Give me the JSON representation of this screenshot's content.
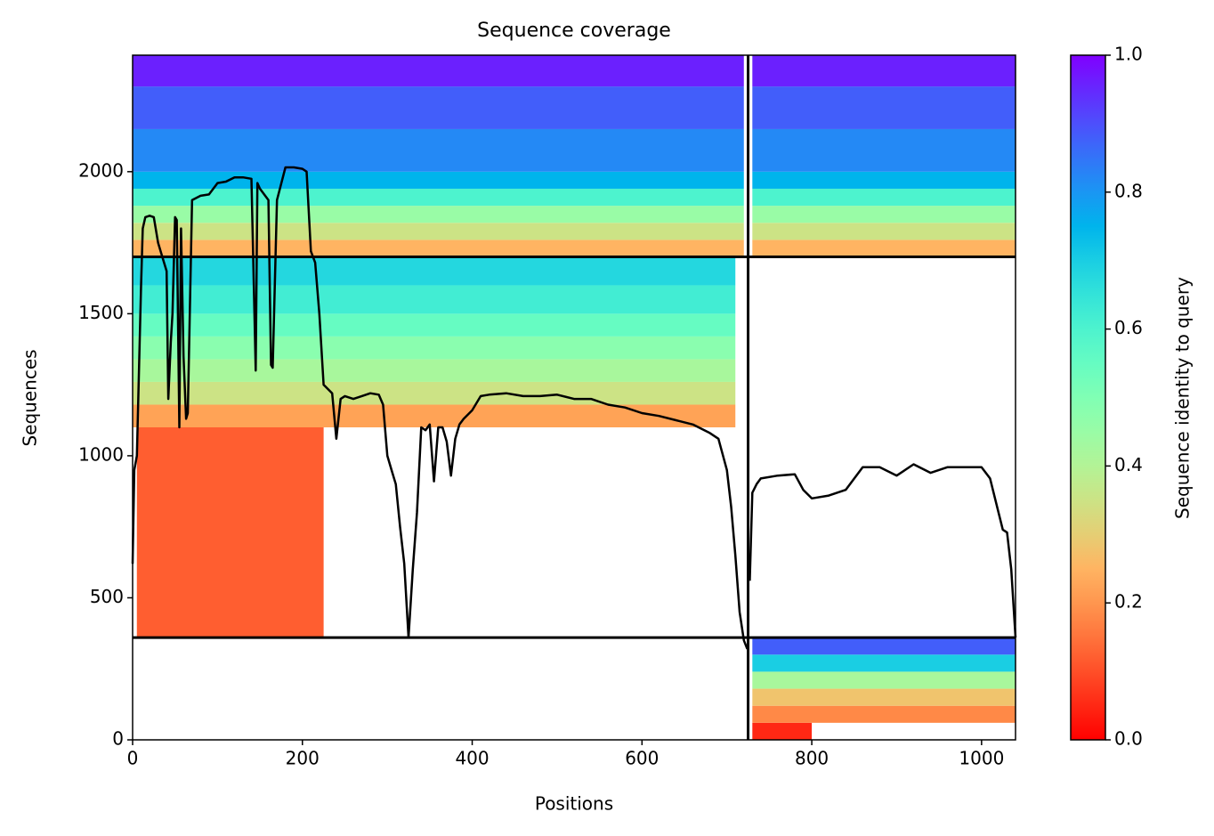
{
  "chart_data": {
    "type": "heatmap",
    "title": "Sequence coverage",
    "xlabel": "Positions",
    "ylabel": "Sequences",
    "xlim": [
      0,
      1040
    ],
    "ylim": [
      0,
      2410
    ],
    "xticks": [
      0,
      200,
      400,
      600,
      800,
      1000
    ],
    "yticks": [
      0,
      500,
      1000,
      1500,
      2000
    ],
    "colormap": "rainbow_r",
    "colorbar": {
      "label": "Sequence identity to query",
      "lim": [
        0,
        1
      ],
      "ticks": [
        {
          "value": 0,
          "label": "0.0"
        },
        0.2,
        0.4,
        0.6,
        0.8,
        {
          "value": 1,
          "label": "1.0"
        }
      ]
    },
    "bands": [
      {
        "x": [
          0,
          720
        ],
        "y": [
          1700,
          1760
        ],
        "identity": 0.25
      },
      {
        "x": [
          0,
          720
        ],
        "y": [
          1760,
          1820
        ],
        "identity": 0.35
      },
      {
        "x": [
          0,
          720
        ],
        "y": [
          1820,
          1880
        ],
        "identity": 0.45
      },
      {
        "x": [
          0,
          720
        ],
        "y": [
          1880,
          1940
        ],
        "identity": 0.6
      },
      {
        "x": [
          0,
          720
        ],
        "y": [
          1940,
          2000
        ],
        "identity": 0.75
      },
      {
        "x": [
          0,
          720
        ],
        "y": [
          2000,
          2150
        ],
        "identity": 0.82
      },
      {
        "x": [
          0,
          720
        ],
        "y": [
          2150,
          2300
        ],
        "identity": 0.88
      },
      {
        "x": [
          0,
          720
        ],
        "y": [
          2300,
          2410
        ],
        "identity": 0.96
      },
      {
        "x": [
          730,
          1040
        ],
        "y": [
          1700,
          1760
        ],
        "identity": 0.25
      },
      {
        "x": [
          730,
          1040
        ],
        "y": [
          1760,
          1820
        ],
        "identity": 0.35
      },
      {
        "x": [
          730,
          1040
        ],
        "y": [
          1820,
          1880
        ],
        "identity": 0.45
      },
      {
        "x": [
          730,
          1040
        ],
        "y": [
          1880,
          1940
        ],
        "identity": 0.6
      },
      {
        "x": [
          730,
          1040
        ],
        "y": [
          1940,
          2000
        ],
        "identity": 0.75
      },
      {
        "x": [
          730,
          1040
        ],
        "y": [
          2000,
          2150
        ],
        "identity": 0.82
      },
      {
        "x": [
          730,
          1040
        ],
        "y": [
          2150,
          2300
        ],
        "identity": 0.88
      },
      {
        "x": [
          730,
          1040
        ],
        "y": [
          2300,
          2410
        ],
        "identity": 0.96
      },
      {
        "x": [
          0,
          710
        ],
        "y": [
          1100,
          1180
        ],
        "identity": 0.22
      },
      {
        "x": [
          0,
          710
        ],
        "y": [
          1180,
          1260
        ],
        "identity": 0.35
      },
      {
        "x": [
          0,
          710
        ],
        "y": [
          1260,
          1340
        ],
        "identity": 0.42
      },
      {
        "x": [
          0,
          710
        ],
        "y": [
          1340,
          1420
        ],
        "identity": 0.48
      },
      {
        "x": [
          0,
          710
        ],
        "y": [
          1420,
          1500
        ],
        "identity": 0.55
      },
      {
        "x": [
          0,
          710
        ],
        "y": [
          1500,
          1600
        ],
        "identity": 0.62
      },
      {
        "x": [
          0,
          710
        ],
        "y": [
          1600,
          1700
        ],
        "identity": 0.68
      },
      {
        "x": [
          5,
          225
        ],
        "y": [
          360,
          1100
        ],
        "identity": 0.12
      },
      {
        "x": [
          730,
          800
        ],
        "y": [
          0,
          60
        ],
        "identity": 0.05
      },
      {
        "x": [
          730,
          1040
        ],
        "y": [
          60,
          120
        ],
        "identity": 0.18
      },
      {
        "x": [
          730,
          1040
        ],
        "y": [
          120,
          180
        ],
        "identity": 0.28
      },
      {
        "x": [
          730,
          1040
        ],
        "y": [
          180,
          240
        ],
        "identity": 0.42
      },
      {
        "x": [
          730,
          1040
        ],
        "y": [
          240,
          300
        ],
        "identity": 0.7
      },
      {
        "x": [
          730,
          1040
        ],
        "y": [
          300,
          360
        ],
        "identity": 0.88
      }
    ],
    "dividers": {
      "x": [
        725
      ],
      "y": [
        360,
        1700
      ]
    },
    "line": {
      "color": "#000000",
      "x": [
        0,
        2,
        5,
        10,
        12,
        15,
        20,
        25,
        30,
        35,
        40,
        42,
        45,
        47,
        50,
        52,
        55,
        57,
        60,
        63,
        65,
        70,
        80,
        90,
        100,
        110,
        120,
        130,
        140,
        145,
        147,
        150,
        160,
        163,
        165,
        170,
        180,
        190,
        200,
        205,
        210,
        215,
        220,
        225,
        235,
        240,
        245,
        250,
        260,
        270,
        280,
        290,
        295,
        300,
        305,
        310,
        315,
        320,
        325,
        330,
        335,
        340,
        345,
        350,
        355,
        360,
        365,
        370,
        375,
        380,
        385,
        390,
        400,
        410,
        420,
        440,
        460,
        480,
        500,
        520,
        540,
        560,
        580,
        600,
        620,
        640,
        660,
        680,
        690,
        700,
        705,
        710,
        715,
        720,
        724,
        null,
        727,
        730,
        735,
        740,
        760,
        780,
        790,
        800,
        820,
        840,
        860,
        880,
        900,
        920,
        940,
        960,
        980,
        1000,
        1010,
        1020,
        1025,
        1030,
        1035,
        1040
      ],
      "values": [
        620,
        950,
        1000,
        1600,
        1800,
        1840,
        1845,
        1840,
        1750,
        1700,
        1650,
        1200,
        1400,
        1500,
        1840,
        1830,
        1100,
        1800,
        1350,
        1130,
        1150,
        1900,
        1915,
        1920,
        1960,
        1965,
        1980,
        1980,
        1975,
        1300,
        1960,
        1940,
        1900,
        1320,
        1310,
        1900,
        2015,
        2015,
        2010,
        2000,
        1720,
        1680,
        1500,
        1250,
        1220,
        1060,
        1200,
        1210,
        1200,
        1210,
        1220,
        1215,
        1180,
        1000,
        950,
        900,
        750,
        620,
        360,
        600,
        800,
        1100,
        1090,
        1110,
        910,
        1100,
        1100,
        1050,
        930,
        1060,
        1110,
        1130,
        1160,
        1210,
        1215,
        1220,
        1210,
        1210,
        1215,
        1200,
        1200,
        1180,
        1170,
        1150,
        1140,
        1125,
        1110,
        1080,
        1060,
        950,
        820,
        650,
        450,
        350,
        320,
        null,
        560,
        870,
        900,
        920,
        930,
        935,
        880,
        850,
        860,
        880,
        960,
        960,
        930,
        970,
        940,
        960,
        960,
        960,
        920,
        800,
        740,
        730,
        600,
        360
      ]
    }
  }
}
